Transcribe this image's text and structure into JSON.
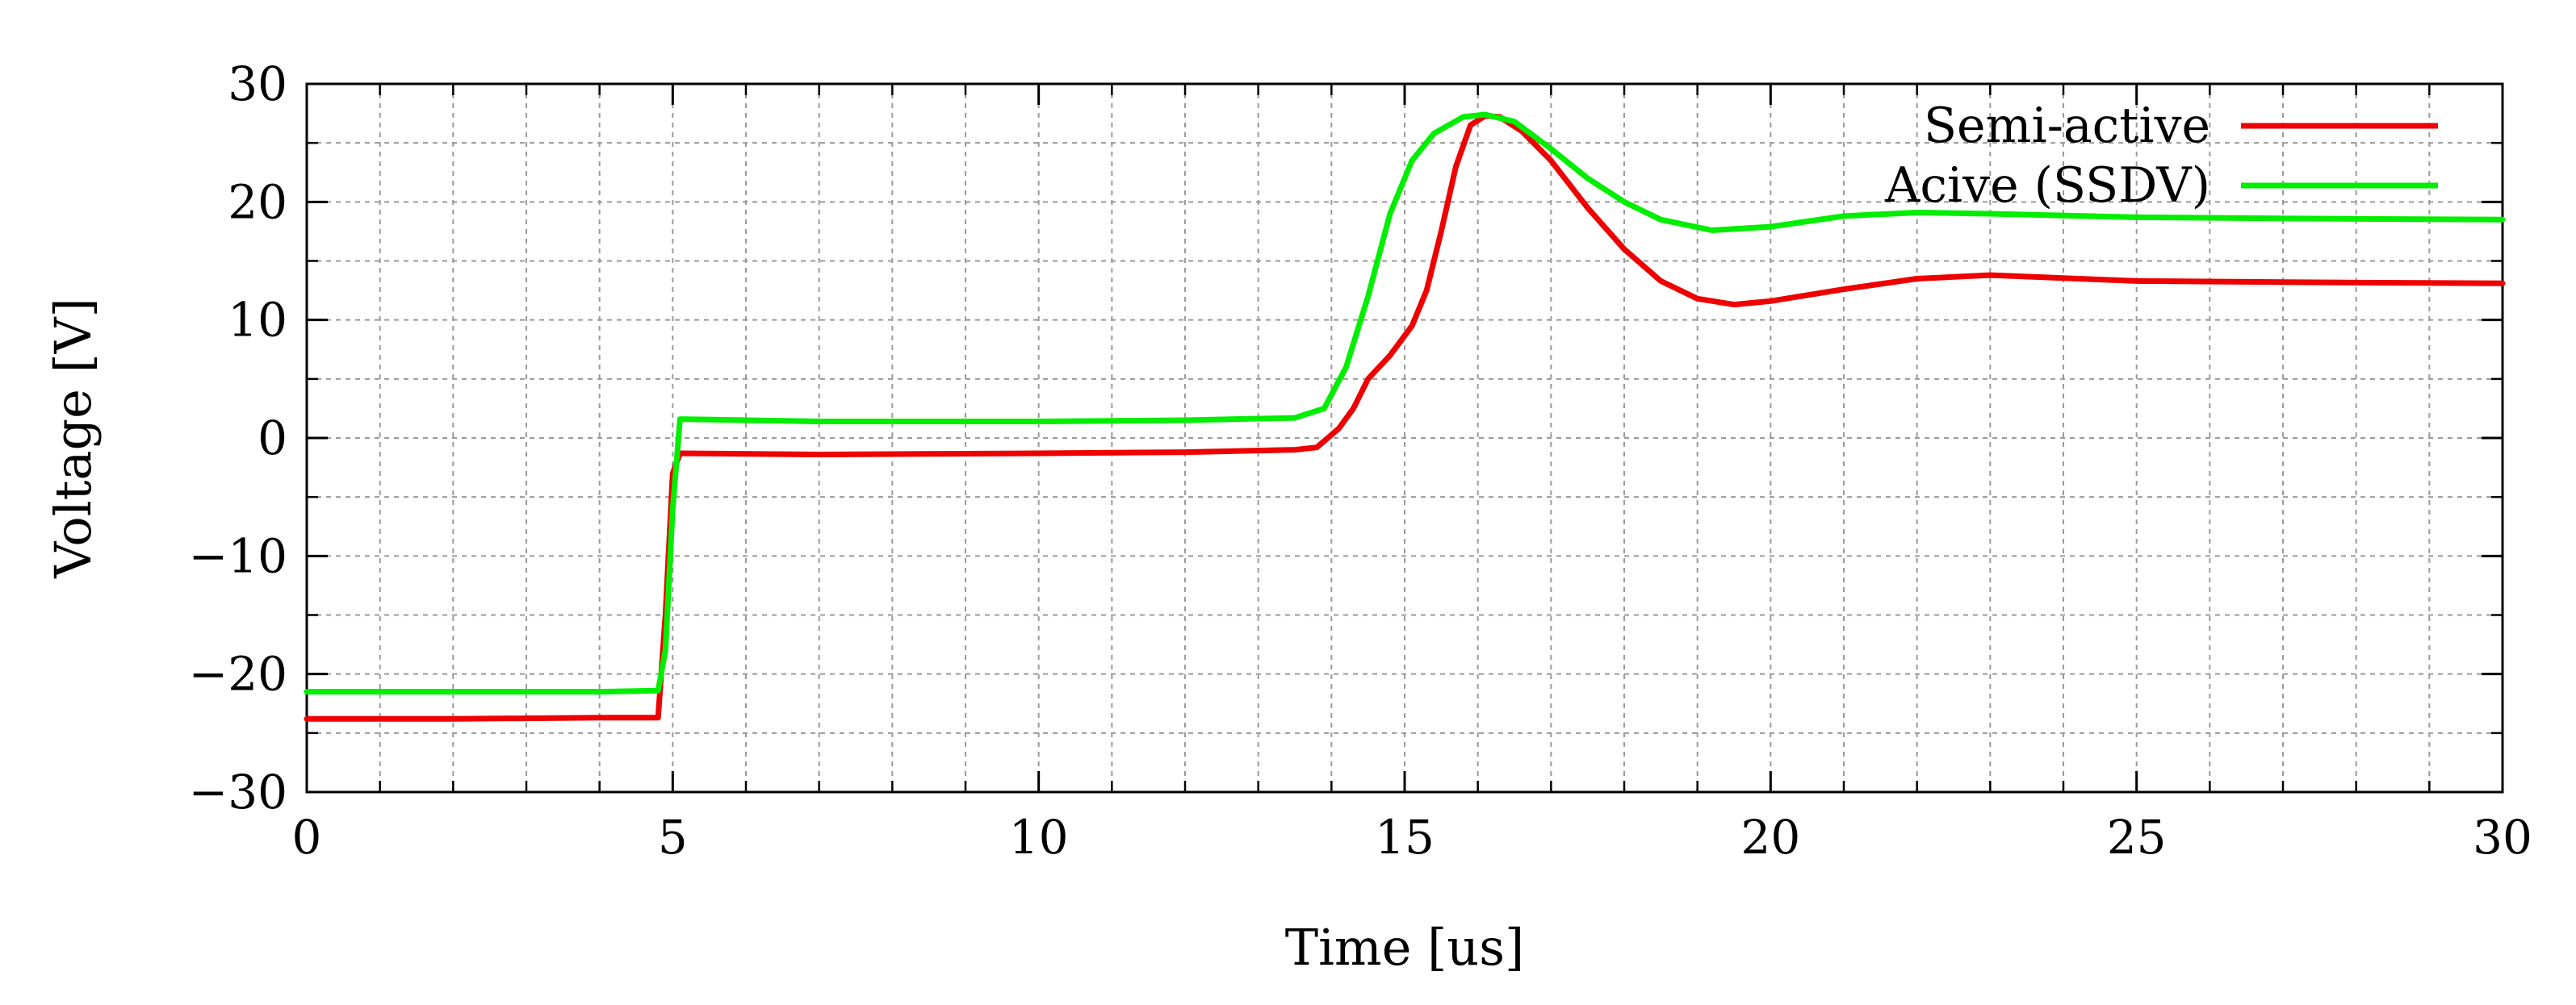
{
  "chart_data": {
    "type": "line",
    "title": "",
    "xlabel": "Time [us]",
    "ylabel": "Voltage [V]",
    "xlim": [
      0,
      30
    ],
    "ylim": [
      -30,
      30
    ],
    "xticks": [
      0,
      5,
      10,
      15,
      20,
      25,
      30
    ],
    "yticks": [
      -30,
      -20,
      -10,
      0,
      10,
      20,
      30
    ],
    "xtick_labels": [
      "0",
      "5",
      "10",
      "15",
      "20",
      "25",
      "30"
    ],
    "ytick_labels": [
      "−30",
      "−20",
      "−10",
      "0",
      "10",
      "20",
      "30"
    ],
    "grid": true,
    "legend_position": "top-right",
    "series": [
      {
        "name": "Semi-active",
        "color": "#ee0000",
        "points": [
          [
            0,
            -23.8
          ],
          [
            2,
            -23.8
          ],
          [
            4,
            -23.7
          ],
          [
            4.8,
            -23.7
          ],
          [
            4.9,
            -15
          ],
          [
            5.0,
            -3
          ],
          [
            5.1,
            -1.3
          ],
          [
            7,
            -1.4
          ],
          [
            10,
            -1.3
          ],
          [
            12,
            -1.2
          ],
          [
            13.5,
            -1.0
          ],
          [
            13.8,
            -0.8
          ],
          [
            14.1,
            0.8
          ],
          [
            14.3,
            2.5
          ],
          [
            14.5,
            5.0
          ],
          [
            14.8,
            7.0
          ],
          [
            15.1,
            9.5
          ],
          [
            15.3,
            12.5
          ],
          [
            15.5,
            17.5
          ],
          [
            15.7,
            23.0
          ],
          [
            15.9,
            26.5
          ],
          [
            16.1,
            27.3
          ],
          [
            16.3,
            27.2
          ],
          [
            16.6,
            26.0
          ],
          [
            17.0,
            23.5
          ],
          [
            17.5,
            19.5
          ],
          [
            18.0,
            16.0
          ],
          [
            18.5,
            13.3
          ],
          [
            19.0,
            11.8
          ],
          [
            19.5,
            11.3
          ],
          [
            20.0,
            11.6
          ],
          [
            21.0,
            12.6
          ],
          [
            22.0,
            13.5
          ],
          [
            23.0,
            13.8
          ],
          [
            25.0,
            13.3
          ],
          [
            27.0,
            13.2
          ],
          [
            30.0,
            13.1
          ]
        ]
      },
      {
        "name": "Acive (SSDV)",
        "color": "#00ee00",
        "points": [
          [
            0,
            -21.5
          ],
          [
            2,
            -21.5
          ],
          [
            4,
            -21.5
          ],
          [
            4.8,
            -21.4
          ],
          [
            4.9,
            -18
          ],
          [
            5.0,
            -6
          ],
          [
            5.1,
            1.6
          ],
          [
            7,
            1.4
          ],
          [
            10,
            1.4
          ],
          [
            12,
            1.5
          ],
          [
            13.5,
            1.7
          ],
          [
            13.9,
            2.5
          ],
          [
            14.2,
            6.0
          ],
          [
            14.5,
            12.0
          ],
          [
            14.8,
            19.0
          ],
          [
            15.1,
            23.5
          ],
          [
            15.4,
            25.8
          ],
          [
            15.8,
            27.2
          ],
          [
            16.1,
            27.4
          ],
          [
            16.5,
            26.8
          ],
          [
            17.0,
            24.5
          ],
          [
            17.5,
            22.0
          ],
          [
            18.0,
            20.0
          ],
          [
            18.5,
            18.5
          ],
          [
            19.2,
            17.6
          ],
          [
            20.0,
            17.9
          ],
          [
            21.0,
            18.8
          ],
          [
            22.0,
            19.1
          ],
          [
            23.0,
            19.0
          ],
          [
            25.0,
            18.7
          ],
          [
            27.0,
            18.6
          ],
          [
            30.0,
            18.5
          ]
        ]
      }
    ]
  }
}
